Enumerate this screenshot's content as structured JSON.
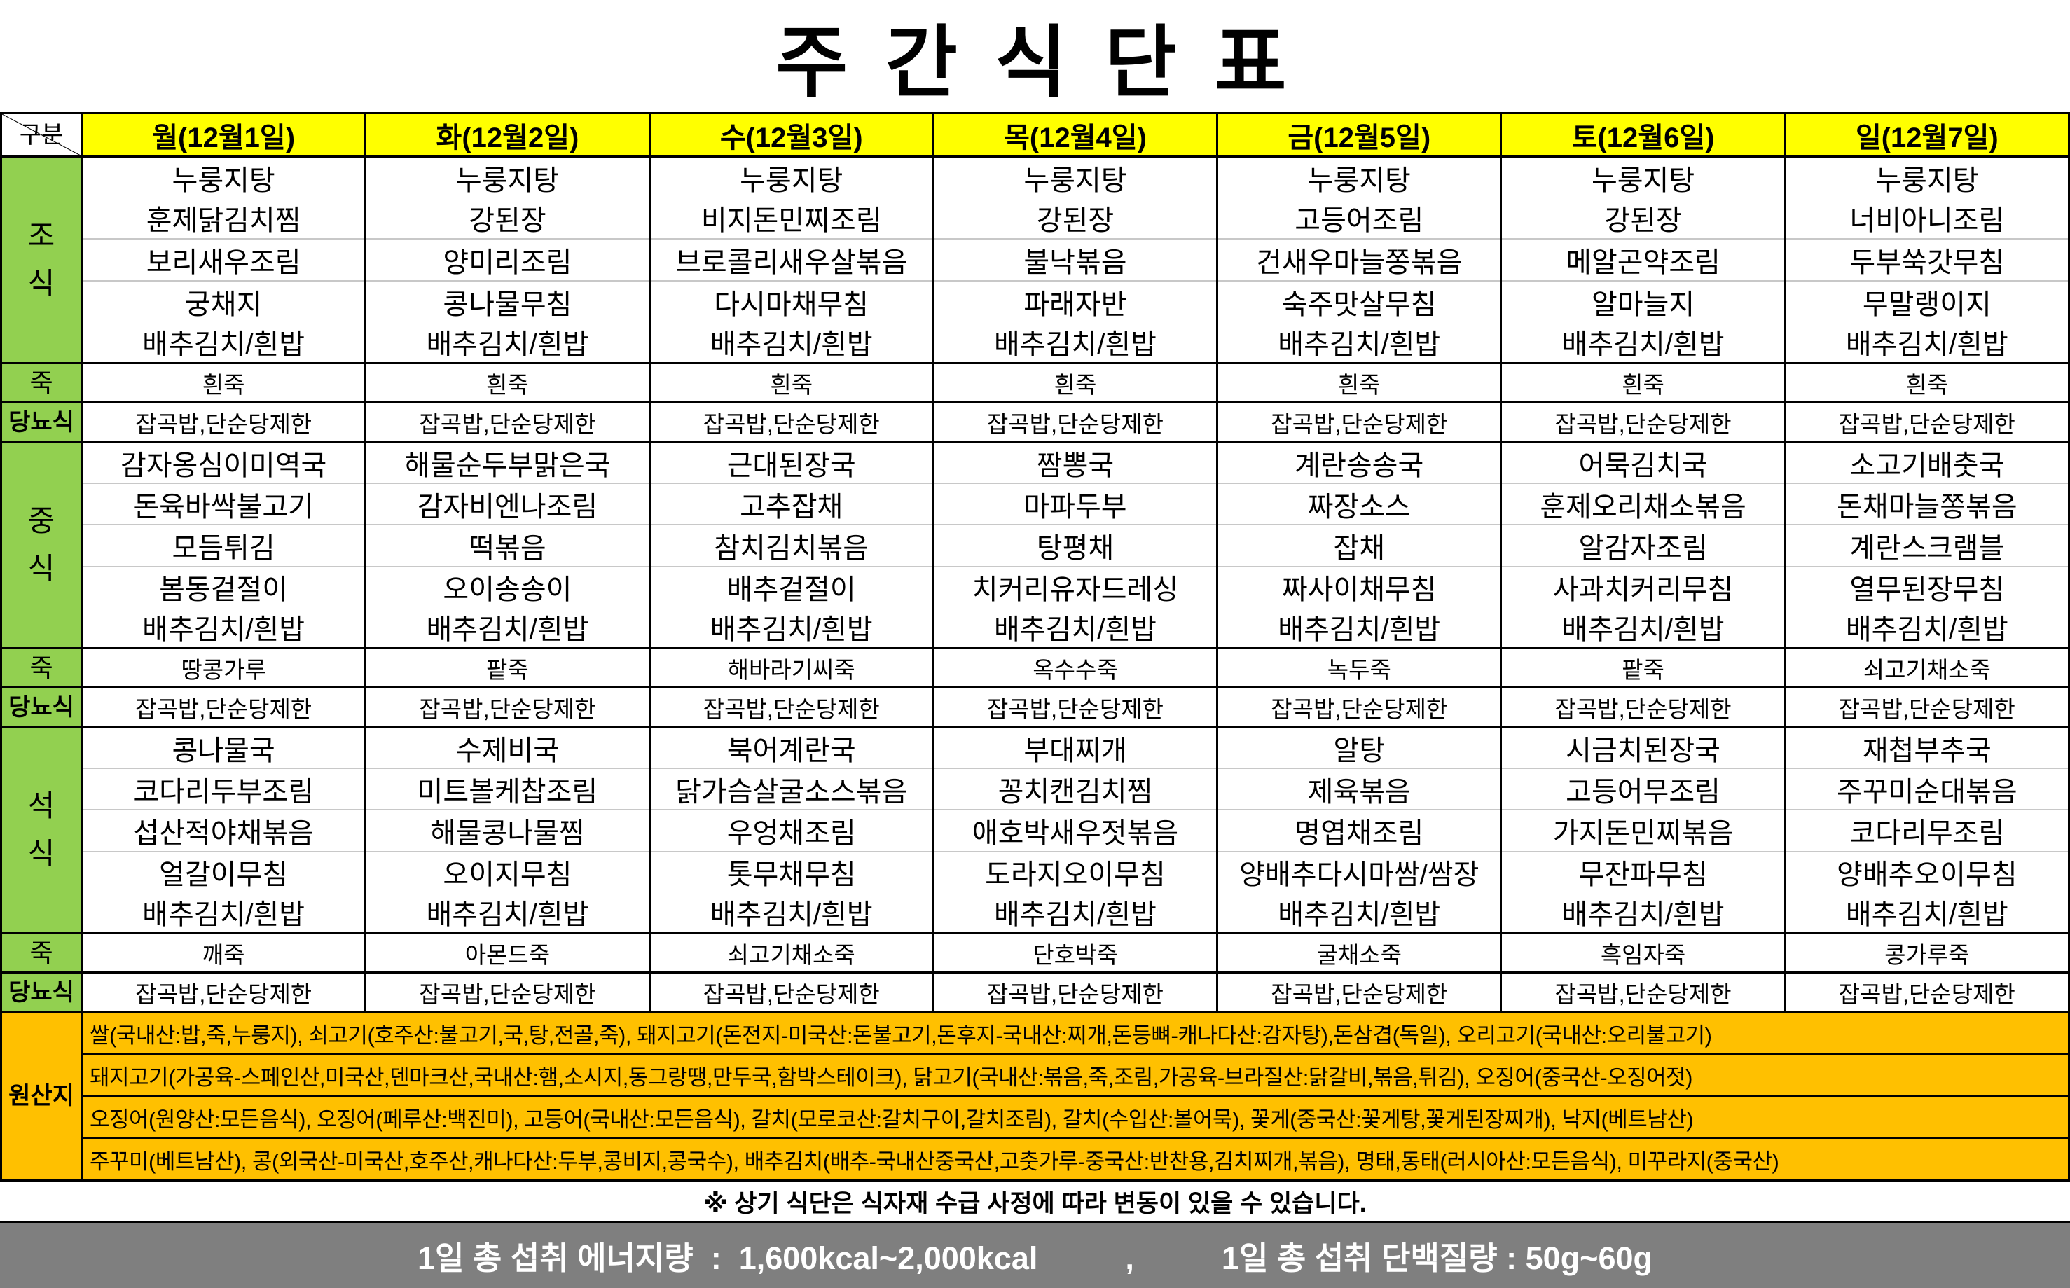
{
  "title": "주 간 식 단 표",
  "corner_label": "구분",
  "days": [
    "월(12월1일)",
    "화(12월2일)",
    "수(12월3일)",
    "목(12월4일)",
    "금(12월5일)",
    "토(12월6일)",
    "일(12월7일)"
  ],
  "colors": {
    "header_bg": "#FFFF00",
    "label_bg": "#92D050",
    "origin_bg": "#FFC000",
    "footer_bg": "#7F7F7F"
  },
  "sections": [
    {
      "key": "breakfast",
      "type": "meal",
      "label": "조식",
      "items_by_day": [
        [
          "누룽지탕",
          "훈제닭김치찜",
          "보리새우조림",
          "궁채지",
          "배추김치/흰밥"
        ],
        [
          "누룽지탕",
          "강된장",
          "양미리조림",
          "콩나물무침",
          "배추김치/흰밥"
        ],
        [
          "누룽지탕",
          "비지돈민찌조림",
          "브로콜리새우살볶음",
          "다시마채무침",
          "배추김치/흰밥"
        ],
        [
          "누룽지탕",
          "강된장",
          "불낙볶음",
          "파래자반",
          "배추김치/흰밥"
        ],
        [
          "누룽지탕",
          "고등어조림",
          "건새우마늘쫑볶음",
          "숙주맛살무침",
          "배추김치/흰밥"
        ],
        [
          "누룽지탕",
          "강된장",
          "메알곤약조림",
          "알마늘지",
          "배추김치/흰밥"
        ],
        [
          "누룽지탕",
          "너비아니조림",
          "두부쑥갓무침",
          "무말랭이지",
          "배추김치/흰밥"
        ]
      ]
    },
    {
      "key": "porridge1",
      "type": "sub",
      "label": "죽",
      "bold": false,
      "values": [
        "흰죽",
        "흰죽",
        "흰죽",
        "흰죽",
        "흰죽",
        "흰죽",
        "흰죽"
      ]
    },
    {
      "key": "diabetic1",
      "type": "sub",
      "label": "당뇨식",
      "bold": true,
      "values": [
        "잡곡밥,단순당제한",
        "잡곡밥,단순당제한",
        "잡곡밥,단순당제한",
        "잡곡밥,단순당제한",
        "잡곡밥,단순당제한",
        "잡곡밥,단순당제한",
        "잡곡밥,단순당제한"
      ]
    },
    {
      "key": "lunch",
      "type": "meal",
      "label": "중식",
      "items_by_day": [
        [
          "감자옹심이미역국",
          "돈육바싹불고기",
          "모듬튀김",
          "봄동겉절이",
          "배추김치/흰밥"
        ],
        [
          "해물순두부맑은국",
          "감자비엔나조림",
          "떡볶음",
          "오이송송이",
          "배추김치/흰밥"
        ],
        [
          "근대된장국",
          "고추잡채",
          "참치김치볶음",
          "배추겉절이",
          "배추김치/흰밥"
        ],
        [
          "짬뽕국",
          "마파두부",
          "탕평채",
          "치커리유자드레싱",
          "배추김치/흰밥"
        ],
        [
          "계란송송국",
          "짜장소스",
          "잡채",
          "짜사이채무침",
          "배추김치/흰밥"
        ],
        [
          "어묵김치국",
          "훈제오리채소볶음",
          "알감자조림",
          "사과치커리무침",
          "배추김치/흰밥"
        ],
        [
          "소고기배춧국",
          "돈채마늘쫑볶음",
          "계란스크램블",
          "열무된장무침",
          "배추김치/흰밥"
        ]
      ]
    },
    {
      "key": "porridge2",
      "type": "sub",
      "label": "죽",
      "bold": false,
      "values": [
        "땅콩가루",
        "팥죽",
        "해바라기씨죽",
        "옥수수죽",
        "녹두죽",
        "팥죽",
        "쇠고기채소죽"
      ]
    },
    {
      "key": "diabetic2",
      "type": "sub",
      "label": "당뇨식",
      "bold": true,
      "values": [
        "잡곡밥,단순당제한",
        "잡곡밥,단순당제한",
        "잡곡밥,단순당제한",
        "잡곡밥,단순당제한",
        "잡곡밥,단순당제한",
        "잡곡밥,단순당제한",
        "잡곡밥,단순당제한"
      ]
    },
    {
      "key": "dinner",
      "type": "meal",
      "label": "석식",
      "items_by_day": [
        [
          "콩나물국",
          "코다리두부조림",
          "섭산적야채볶음",
          "얼갈이무침",
          "배추김치/흰밥"
        ],
        [
          "수제비국",
          "미트볼케찹조림",
          "해물콩나물찜",
          "오이지무침",
          "배추김치/흰밥"
        ],
        [
          "북어계란국",
          "닭가슴살굴소스볶음",
          "우엉채조림",
          "톳무채무침",
          "배추김치/흰밥"
        ],
        [
          "부대찌개",
          "꽁치캔김치찜",
          "애호박새우젓볶음",
          "도라지오이무침",
          "배추김치/흰밥"
        ],
        [
          "알탕",
          "제육볶음",
          "명엽채조림",
          "양배추다시마쌈/쌈장",
          "배추김치/흰밥"
        ],
        [
          "시금치된장국",
          "고등어무조림",
          "가지돈민찌볶음",
          "무잔파무침",
          "배추김치/흰밥"
        ],
        [
          "재첩부추국",
          "주꾸미순대볶음",
          "코다리무조림",
          "양배추오이무침",
          "배추김치/흰밥"
        ]
      ]
    },
    {
      "key": "porridge3",
      "type": "sub",
      "label": "죽",
      "bold": false,
      "values": [
        "깨죽",
        "아몬드죽",
        "쇠고기채소죽",
        "단호박죽",
        "굴채소죽",
        "흑임자죽",
        "콩가루죽"
      ]
    },
    {
      "key": "diabetic3",
      "type": "sub",
      "label": "당뇨식",
      "bold": true,
      "values": [
        "잡곡밥,단순당제한",
        "잡곡밥,단순당제한",
        "잡곡밥,단순당제한",
        "잡곡밥,단순당제한",
        "잡곡밥,단순당제한",
        "잡곡밥,단순당제한",
        "잡곡밥,단순당제한"
      ]
    }
  ],
  "origin": {
    "label": "원산지",
    "lines": [
      "쌀(국내산:밥,죽,누룽지), 쇠고기(호주산:불고기,국,탕,전골,죽), 돼지고기(돈전지-미국산:돈불고기,돈후지-국내산:찌개,돈등뼈-캐나다산:감자탕),돈삼겹(독일), 오리고기(국내산:오리불고기)",
      "돼지고기(가공육-스페인산,미국산,덴마크산,국내산:햄,소시지,동그랑땡,만두국,함박스테이크), 닭고기(국내산:볶음,죽,조림,가공육-브라질산:닭갈비,볶음,튀김), 오징어(중국산-오징어젓)",
      "오징어(원양산:모든음식), 오징어(페루산:백진미), 고등어(국내산:모든음식), 갈치(모로코산:갈치구이,갈치조림), 갈치(수입산:볼어묵), 꽃게(중국산:꽃게탕,꽃게된장찌개), 낙지(베트남산)",
      "주꾸미(베트남산), 콩(외국산-미국산,호주산,캐나다산:두부,콩비지,콩국수), 배추김치(배추-국내산중국산,고춧가루-중국산:반찬용,김치찌개,볶음), 명태,동태(러시아산:모든음식), 미꾸라지(중국산)"
    ]
  },
  "note": "※ 상기 식단은 식자재 수급 사정에 따라 변동이 있을 수 있습니다.",
  "footer": "1일 총 섭취 에너지량  :  1,600kcal~2,000kcal          ,          1일 총 섭취 단백질량 : 50g~60g"
}
